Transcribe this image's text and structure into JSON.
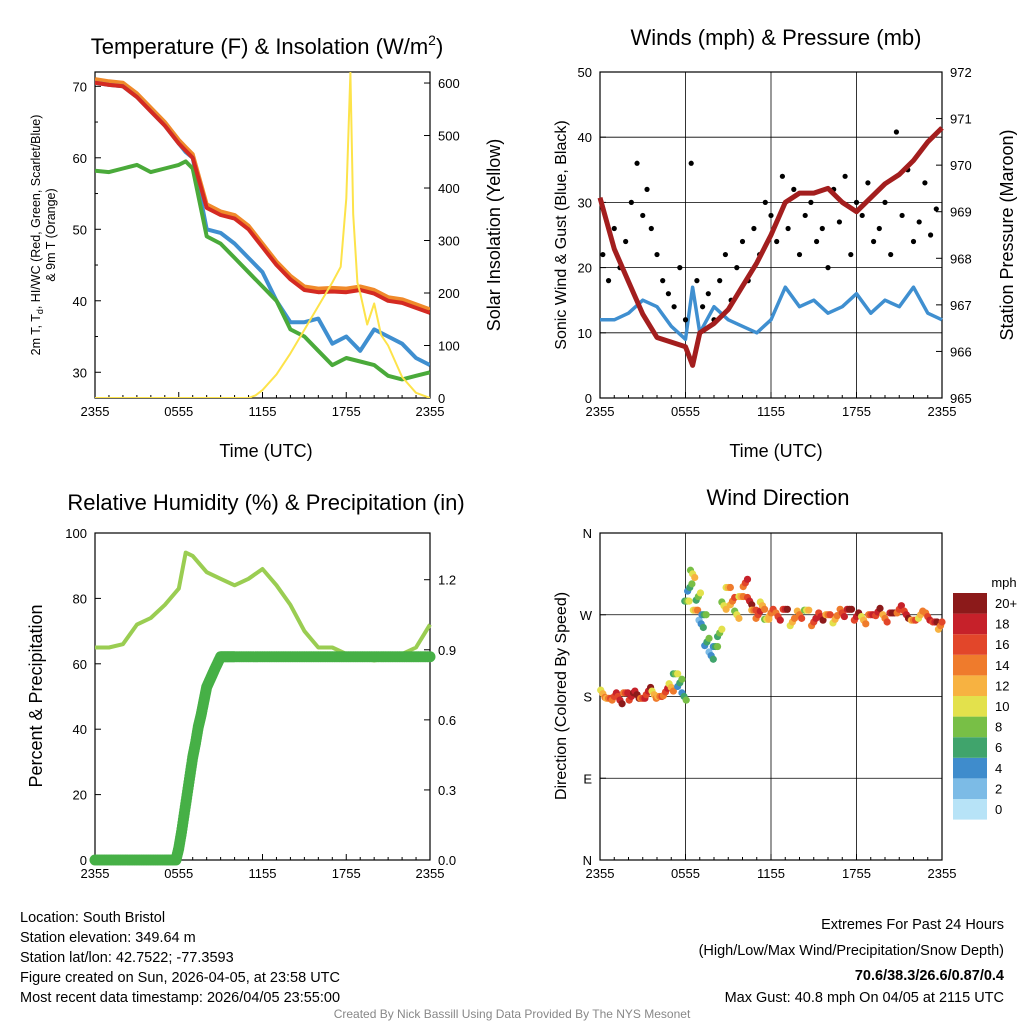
{
  "footer": {
    "location": "Location: South Bristol",
    "elevation": "Station elevation: 349.64 m",
    "latlon": "Station lat/lon: 42.7522; -77.3593",
    "created": "Figure created on Sun, 2026-04-05, at 23:58 UTC",
    "recent": "Most recent data timestamp: 2026/04/05 23:55:00",
    "extremes_title": "Extremes For Past 24 Hours",
    "extremes_sub": "(High/Low/Max Wind/Precipitation/Snow Depth)",
    "extremes_values": "70.6/38.3/26.6/0.87/0.4",
    "max_gust": "Max Gust: 40.8 mph On 04/05 at 2115 UTC",
    "credit": "Created By Nick Bassill Using Data Provided By The NYS Mesonet"
  },
  "colors": {
    "red": "#d42a22",
    "orange": "#f08a2a",
    "green": "#4aaa3a",
    "blue": "#3f8fd0",
    "yellow": "#fde34a",
    "black": "#000000",
    "maroon": "#a31e1e",
    "rh": "#9acd52",
    "precip": "#46b046",
    "extremes": "#d0262a"
  },
  "chart_data": [
    {
      "type": "line",
      "title_main": "Temperature (F) & Insolation (W/m",
      "title_sup": "2",
      "title_end": ")",
      "xlabel": "Time (UTC)",
      "ylabel_line1_a": "2m T, T",
      "ylabel_line1_sub": "d",
      "ylabel_line1_b": ", HI/WC (Red, Green, Scarlet/Blue)",
      "ylabel_line2": "& 9m T (Orange)",
      "y2label": "Solar Insolation (Yellow)",
      "xticks": [
        "2355",
        "0555",
        "1155",
        "1755",
        "2355"
      ],
      "ylim": [
        26.4,
        72
      ],
      "yticks": [
        30,
        40,
        50,
        60,
        70
      ],
      "y2lim": [
        0,
        621
      ],
      "y2ticks": [
        0,
        100,
        200,
        300,
        400,
        500,
        600
      ],
      "x_hours": [
        0,
        1,
        2,
        3,
        4,
        5,
        6,
        6.5,
        7,
        8,
        9,
        10,
        11,
        12,
        13,
        14,
        15,
        16,
        17,
        18,
        19,
        20,
        21,
        22,
        23,
        24
      ],
      "series": [
        {
          "name": "9m T",
          "color": "orange",
          "axis": "left",
          "values": [
            71,
            70.7,
            70.5,
            69,
            67,
            65,
            62.5,
            61.5,
            60.5,
            53.5,
            52.5,
            52,
            50.5,
            48,
            45.5,
            43.5,
            42,
            41.7,
            41.8,
            41.7,
            42,
            41.5,
            40.5,
            40.2,
            39.5,
            38.8
          ]
        },
        {
          "name": "HI/WC",
          "color": "blue",
          "axis": "left",
          "values": [
            70.5,
            70.2,
            70,
            68.5,
            66.5,
            64.5,
            62,
            60.8,
            60,
            50,
            49.5,
            48,
            46,
            44,
            40,
            37,
            37,
            37.5,
            34,
            35,
            33,
            36,
            35,
            34,
            32,
            31
          ]
        },
        {
          "name": "Dew Point",
          "color": "green",
          "axis": "left",
          "values": [
            58.2,
            58,
            58.5,
            59,
            58,
            58.5,
            59,
            59.5,
            58.5,
            49,
            48,
            46,
            44,
            42,
            40,
            36,
            35,
            33,
            31,
            32,
            31.5,
            31,
            29.5,
            29,
            29.5,
            30
          ]
        },
        {
          "name": "2m T",
          "color": "red",
          "axis": "left",
          "values": [
            70.5,
            70.2,
            70,
            68.5,
            66.5,
            64.5,
            62,
            61,
            60,
            53,
            52,
            51.5,
            50,
            47.5,
            45,
            43,
            41.5,
            41.2,
            41.3,
            41.2,
            41.5,
            41,
            40,
            39.7,
            39,
            38.3
          ]
        },
        {
          "name": "Solar",
          "color": "yellow",
          "axis": "right",
          "x_hours": [
            0,
            11,
            11.5,
            12,
            13,
            14,
            15,
            16,
            17,
            17.6,
            18,
            18.3,
            18.5,
            18.8,
            19,
            19.5,
            20,
            20.5,
            21,
            22,
            23,
            24
          ],
          "values": [
            0,
            0,
            5,
            15,
            45,
            85,
            130,
            175,
            220,
            250,
            380,
            620,
            350,
            220,
            200,
            140,
            180,
            120,
            100,
            40,
            10,
            0
          ]
        }
      ]
    },
    {
      "type": "line+scatter",
      "title": "Winds (mph) & Pressure (mb)",
      "xlabel": "Time (UTC)",
      "ylabel": "Sonic Wind & Gust (Blue, Black)",
      "y2label": "Station Pressure (Maroon)",
      "xticks": [
        "2355",
        "0555",
        "1155",
        "1755",
        "2355"
      ],
      "ylim": [
        0,
        50
      ],
      "yticks": [
        0,
        10,
        20,
        30,
        40,
        50
      ],
      "y2lim": [
        965,
        972
      ],
      "y2ticks": [
        965,
        966,
        967,
        968,
        969,
        970,
        971,
        972
      ],
      "sonic_wind": {
        "x_hours": [
          0,
          1,
          2,
          3,
          4,
          5,
          6,
          6.5,
          7,
          8,
          9,
          10,
          11,
          12,
          13,
          14,
          15,
          16,
          17,
          18,
          19,
          20,
          21,
          22,
          23,
          24
        ],
        "values": [
          12,
          12,
          13,
          15,
          14,
          11,
          9,
          17,
          10,
          14,
          12,
          11,
          10,
          12,
          17,
          14,
          15,
          13,
          14,
          16,
          13,
          15,
          14,
          17,
          13,
          12
        ]
      },
      "pressure": {
        "x_hours": [
          0,
          1,
          2,
          3,
          4,
          5,
          6,
          6.5,
          7,
          8,
          9,
          10,
          11,
          12,
          13,
          14,
          15,
          16,
          17,
          18,
          19,
          20,
          21,
          22,
          23,
          24
        ],
        "values": [
          969.3,
          968.2,
          967.5,
          966.8,
          966.3,
          966.2,
          966.1,
          965.7,
          966.4,
          966.6,
          966.9,
          967.4,
          967.9,
          968.5,
          969.2,
          969.4,
          969.4,
          969.5,
          969.2,
          969.0,
          969.3,
          969.6,
          969.8,
          970.1,
          970.5,
          970.8
        ]
      },
      "gusts": {
        "x_hours": [
          0.2,
          0.6,
          1.0,
          1.4,
          1.8,
          2.2,
          2.6,
          3.0,
          3.3,
          3.6,
          4.0,
          4.4,
          4.8,
          5.2,
          5.6,
          6.0,
          6.4,
          6.8,
          7.2,
          7.6,
          8.0,
          8.4,
          8.8,
          9.2,
          9.6,
          10.0,
          10.4,
          10.8,
          11.2,
          11.6,
          12.0,
          12.4,
          12.8,
          13.2,
          13.6,
          14.0,
          14.4,
          14.8,
          15.2,
          15.6,
          16.0,
          16.4,
          16.8,
          17.2,
          17.6,
          18.0,
          18.4,
          18.8,
          19.2,
          19.6,
          20.0,
          20.4,
          20.8,
          21.2,
          21.6,
          22.0,
          22.4,
          22.8,
          23.2,
          23.6
        ],
        "values": [
          22,
          18,
          26,
          20,
          24,
          30,
          36,
          28,
          32,
          26,
          22,
          18,
          16,
          14,
          20,
          12,
          36,
          18,
          14,
          16,
          12,
          18,
          22,
          15,
          20,
          24,
          18,
          26,
          22,
          30,
          28,
          24,
          34,
          26,
          32,
          22,
          28,
          30,
          24,
          26,
          20,
          32,
          27,
          34,
          22,
          30,
          28,
          33,
          24,
          26,
          30,
          22,
          40.8,
          28,
          35,
          24,
          27,
          33,
          25,
          29
        ]
      }
    },
    {
      "type": "line+scatter",
      "title": "Relative Humidity (%) & Precipitation (in)",
      "ylabel": "Percent & Precipitation",
      "xticks": [
        "2355",
        "0555",
        "1155",
        "1755",
        "2355"
      ],
      "ylim": [
        0,
        100
      ],
      "yticks": [
        0,
        20,
        40,
        60,
        80,
        100
      ],
      "y2lim": [
        0,
        1.4
      ],
      "y2ticks": [
        "0.0",
        "0.3",
        "0.6",
        "0.9",
        "1.2"
      ],
      "rh": {
        "x_hours": [
          0,
          1,
          2,
          3,
          4,
          5,
          6,
          6.5,
          7,
          8,
          9,
          10,
          11,
          12,
          13,
          14,
          15,
          16,
          17,
          18,
          19,
          20,
          21,
          22,
          23,
          24
        ],
        "values": [
          65,
          65,
          66,
          72,
          74,
          78,
          83,
          94,
          93,
          88,
          86,
          84,
          86,
          89,
          84,
          78,
          70,
          65,
          65,
          63,
          62,
          61,
          62,
          63,
          65,
          72
        ]
      },
      "precip": {
        "x_hours": [
          0,
          1,
          2,
          3,
          4,
          5,
          5.8,
          6.0,
          6.2,
          6.4,
          6.6,
          6.8,
          7.0,
          7.2,
          7.4,
          7.6,
          7.8,
          8.0,
          8.3,
          8.6,
          9.0,
          9.5,
          10,
          11,
          12,
          13,
          14,
          15,
          16,
          17,
          18,
          19,
          20,
          21,
          22,
          23,
          24
        ],
        "values": [
          0,
          0,
          0,
          0,
          0,
          0,
          0,
          0.05,
          0.12,
          0.2,
          0.28,
          0.36,
          0.44,
          0.5,
          0.57,
          0.62,
          0.68,
          0.74,
          0.78,
          0.82,
          0.87,
          0.87,
          0.87,
          0.87,
          0.87,
          0.87,
          0.87,
          0.87,
          0.87,
          0.87,
          0.87,
          0.87,
          0.87,
          0.87,
          0.87,
          0.87,
          0.87
        ]
      }
    },
    {
      "type": "scatter",
      "title": "Wind Direction",
      "ylabel": "Direction (Colored By Speed)",
      "xticks": [
        "2355",
        "0555",
        "1155",
        "1755",
        "2355"
      ],
      "ylim": [
        0,
        360
      ],
      "yticks": [
        "N",
        "E",
        "S",
        "W",
        "N"
      ],
      "legend_title": "mph",
      "legend_labels": [
        "0",
        "2",
        "4",
        "6",
        "8",
        "10",
        "12",
        "14",
        "16",
        "18",
        "20+"
      ],
      "legend_colors": [
        "#b7e3f7",
        "#7cbbe6",
        "#3f8ccc",
        "#40a46c",
        "#78bf46",
        "#e3e14c",
        "#f7b241",
        "#ef7b2c",
        "#e2462a",
        "#c6212a",
        "#8c1a1a"
      ],
      "points": {
        "x_hours": [
          0.2,
          0.6,
          1.0,
          1.4,
          1.8,
          2.2,
          2.6,
          3.0,
          3.4,
          3.8,
          4.2,
          4.6,
          5.0,
          5.3,
          5.6,
          5.9,
          6.1,
          6.3,
          6.5,
          6.7,
          6.9,
          7.1,
          7.3,
          7.5,
          7.8,
          8.1,
          8.4,
          8.7,
          9.0,
          9.3,
          9.6,
          9.9,
          10.2,
          10.5,
          10.8,
          11.1,
          11.4,
          11.7,
          12.0,
          12.5,
          13.0,
          13.5,
          14.0,
          14.5,
          15.0,
          15.5,
          16.0,
          16.5,
          17.0,
          17.5,
          18.0,
          18.5,
          19.0,
          19.5,
          20.0,
          20.5,
          21.0,
          21.5,
          22.0,
          22.5,
          23.0,
          23.5,
          23.9
        ],
        "deg": [
          183,
          178,
          180,
          176,
          184,
          180,
          182,
          178,
          186,
          182,
          180,
          185,
          190,
          205,
          195,
          180,
          285,
          300,
          315,
          275,
          290,
          260,
          270,
          240,
          225,
          235,
          250,
          280,
          300,
          285,
          270,
          290,
          305,
          285,
          275,
          270,
          280,
          265,
          272,
          268,
          276,
          262,
          270,
          275,
          262,
          268,
          270,
          265,
          272,
          276,
          268,
          264,
          270,
          273,
          266,
          272,
          276,
          270,
          264,
          270,
          268,
          262,
          258
        ],
        "speed": [
          12,
          14,
          16,
          18,
          16,
          18,
          20,
          16,
          18,
          12,
          14,
          16,
          12,
          8,
          6,
          6,
          8,
          6,
          10,
          12,
          8,
          4,
          6,
          6,
          4,
          6,
          8,
          10,
          12,
          14,
          10,
          12,
          16,
          18,
          14,
          16,
          12,
          10,
          14,
          16,
          18,
          12,
          14,
          10,
          16,
          18,
          14,
          12,
          16,
          20,
          18,
          12,
          16,
          18,
          14,
          20,
          16,
          18,
          14,
          12,
          16,
          18,
          14
        ]
      }
    }
  ]
}
